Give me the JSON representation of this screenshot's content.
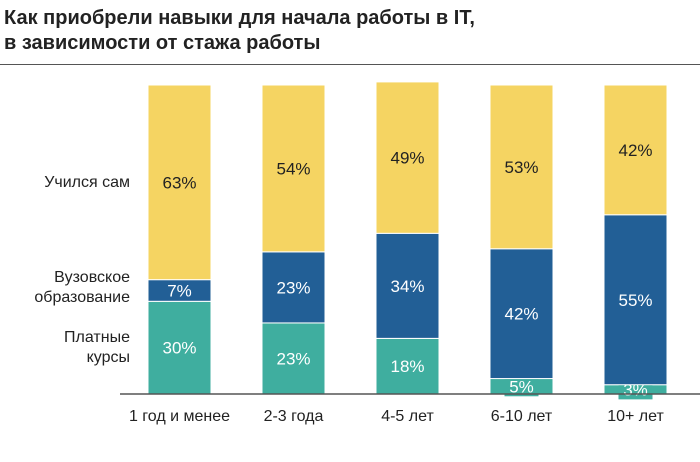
{
  "chart_data": {
    "type": "bar",
    "stacked": true,
    "title_lines": [
      "Как приобрели навыки для начала работы в IT,",
      "в зависимости от стажа работы"
    ],
    "categories": [
      "1 год и менее",
      "2-3 года",
      "4-5 лет",
      "6-10 лет",
      "10+ лет"
    ],
    "series": [
      {
        "name": "Платные курсы",
        "legend_lines": [
          "Платные",
          "курсы"
        ],
        "color": "#3fae9f",
        "values": [
          30,
          23,
          18,
          5,
          3
        ]
      },
      {
        "name": "Вузовское образование",
        "legend_lines": [
          "Вузовское",
          "образование"
        ],
        "color": "#225f96",
        "values": [
          7,
          23,
          34,
          42,
          55
        ]
      },
      {
        "name": "Учился сам",
        "legend_lines": [
          "Учился сам"
        ],
        "color": "#f5d462",
        "values": [
          63,
          54,
          49,
          53,
          42
        ]
      }
    ],
    "ylim": [
      0,
      100
    ],
    "unit": "%",
    "legend": "left"
  }
}
